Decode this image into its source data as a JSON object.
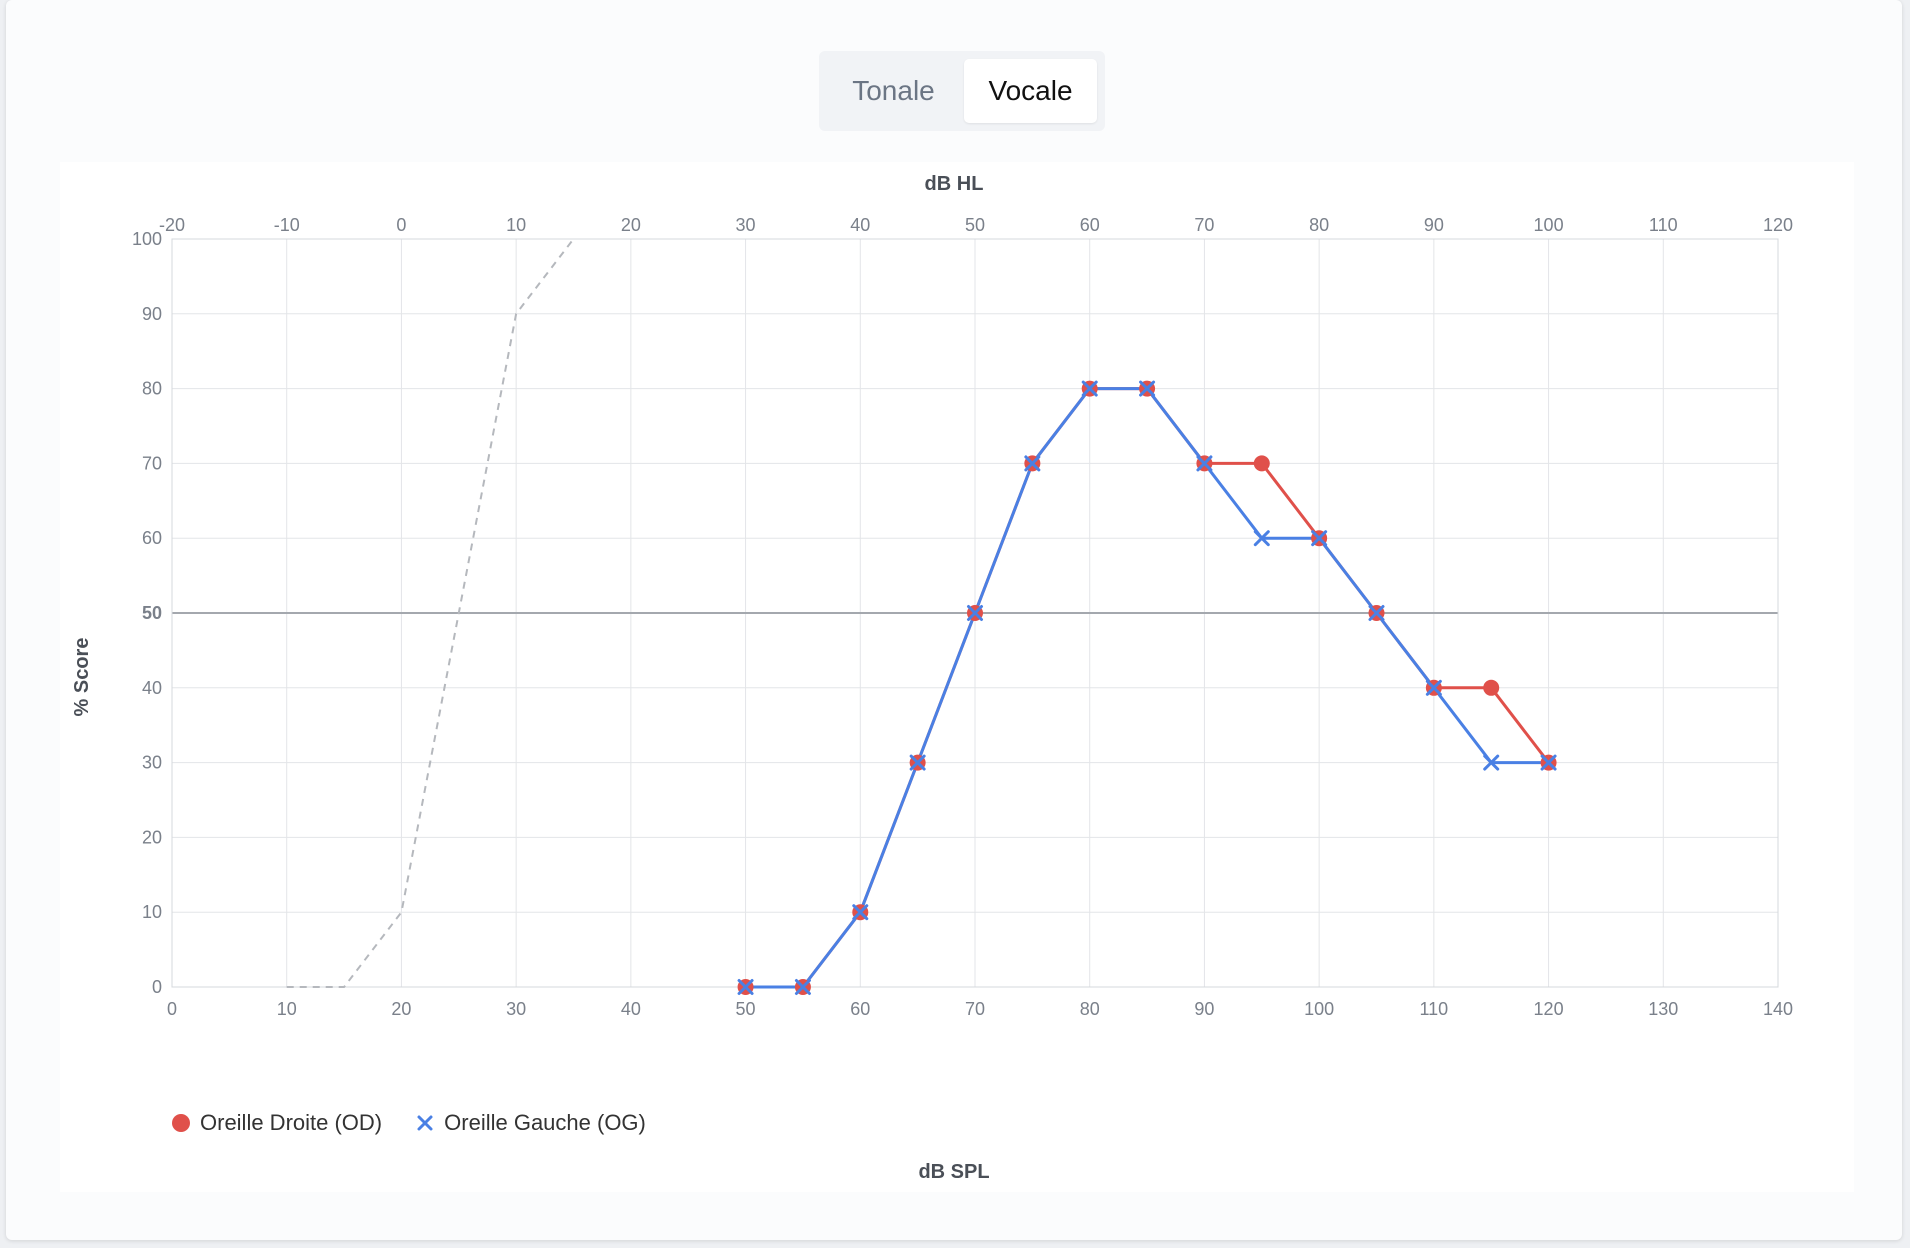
{
  "tabs": [
    {
      "label": "Tonale",
      "active": false
    },
    {
      "label": "Vocale",
      "active": true
    }
  ],
  "chart_data": {
    "type": "line",
    "x_top_label": "dB HL",
    "x_bottom_label": "dB SPL",
    "ylabel": "% Score",
    "x_bottom_range": [
      0,
      140
    ],
    "x_top_range": [
      -20,
      120
    ],
    "ylim": [
      0,
      100
    ],
    "x_bottom_ticks": [
      0,
      10,
      20,
      30,
      40,
      50,
      60,
      70,
      80,
      90,
      100,
      110,
      120,
      130,
      140
    ],
    "x_top_ticks": [
      -20,
      -10,
      0,
      10,
      20,
      30,
      40,
      50,
      60,
      70,
      80,
      90,
      100,
      110,
      120
    ],
    "y_ticks": [
      0,
      10,
      20,
      30,
      40,
      50,
      60,
      70,
      80,
      90,
      100
    ],
    "reference_line_y": 50,
    "grid": true,
    "legend_position": "bottom-left",
    "reference_curve": {
      "style": "dashed",
      "color": "#b5b8bd",
      "x": [
        10,
        15,
        20,
        30,
        35
      ],
      "y": [
        0,
        0,
        10,
        90,
        100
      ]
    },
    "series": [
      {
        "name": "Oreille Droite (OD)",
        "marker": "circle",
        "color": "#e0504a",
        "x": [
          50,
          55,
          60,
          65,
          70,
          75,
          80,
          85,
          90,
          95,
          100,
          105,
          110,
          115,
          120
        ],
        "y": [
          0,
          0,
          10,
          30,
          50,
          70,
          80,
          80,
          70,
          70,
          60,
          50,
          40,
          40,
          30
        ]
      },
      {
        "name": "Oreille Gauche (OG)",
        "marker": "cross",
        "color": "#4a80e4",
        "x": [
          50,
          55,
          60,
          65,
          70,
          75,
          80,
          85,
          90,
          95,
          100,
          105,
          110,
          115,
          120
        ],
        "y": [
          0,
          0,
          10,
          30,
          50,
          70,
          80,
          80,
          70,
          60,
          60,
          50,
          40,
          30,
          30
        ]
      }
    ]
  }
}
